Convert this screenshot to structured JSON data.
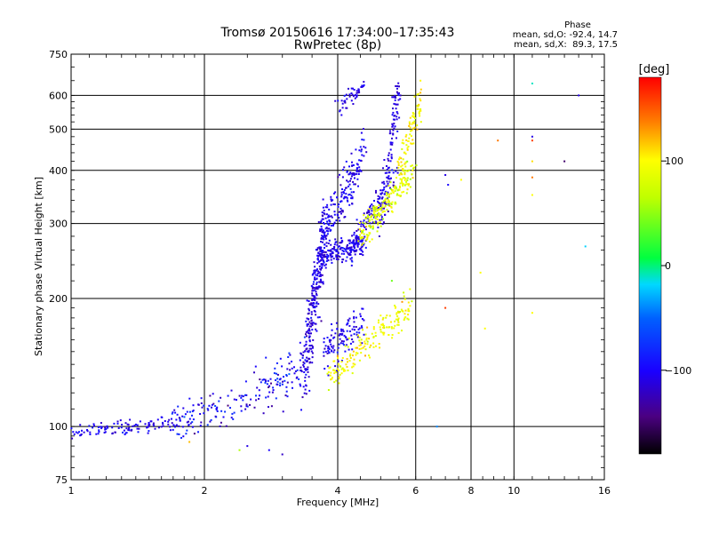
{
  "chart_data": {
    "type": "scatter",
    "title": "Tromsø 20150616 17:34:00–17:35:43",
    "subtitle": "RwPretec (8p)",
    "xlabel": "Frequency [MHz]",
    "ylabel": "Stationary phase Virtual Height [km]",
    "x_scale": "log",
    "y_scale": "log",
    "xlim": [
      1,
      16
    ],
    "ylim": [
      75,
      750
    ],
    "x_ticks": [
      1,
      2,
      4,
      6,
      8,
      10,
      16
    ],
    "x_tick_labels": [
      "1",
      "2",
      "4",
      "6",
      "8",
      "10",
      "16"
    ],
    "y_ticks": [
      75,
      100,
      200,
      300,
      400,
      500,
      600,
      750
    ],
    "y_tick_labels": [
      "75",
      "100",
      "200",
      "300",
      "400",
      "500",
      "600",
      "750"
    ],
    "grid": true,
    "phase_stats": {
      "title": "Phase",
      "o_line": "mean, sd,O: -92.4, 14.7",
      "x_line": "mean, sd,X:  89.3, 17.5"
    },
    "colorbar": {
      "label": "[deg]",
      "range": [
        -180,
        180
      ],
      "ticks": [
        100,
        0,
        -100
      ],
      "tick_labels": [
        "100",
        "0",
        "−100"
      ]
    },
    "series": [
      {
        "segments": [
          {
            "f0": 1.0,
            "f1": 1.7,
            "h0": 97,
            "h1": 102,
            "spread": 0.02,
            "n": 110,
            "phase": -105,
            "psd": 10
          },
          {
            "f0": 1.7,
            "f1": 2.6,
            "h0": 102,
            "h1": 118,
            "spread": 0.05,
            "n": 110,
            "phase": -100,
            "psd": 18
          },
          {
            "f0": 2.6,
            "f1": 3.4,
            "h0": 118,
            "h1": 140,
            "spread": 0.07,
            "n": 90,
            "phase": -100,
            "psd": 20
          },
          {
            "f0": 3.35,
            "f1": 3.75,
            "h0": 130,
            "h1": 300,
            "spread": 0.08,
            "n": 280,
            "phase": -110,
            "psd": 10
          },
          {
            "f0": 3.6,
            "f1": 4.6,
            "h0": 250,
            "h1": 270,
            "spread": 0.03,
            "n": 170,
            "phase": -105,
            "psd": 10
          },
          {
            "f0": 3.7,
            "f1": 4.6,
            "h0": 285,
            "h1": 440,
            "spread": 0.06,
            "n": 180,
            "phase": -105,
            "psd": 10
          },
          {
            "f0": 4.0,
            "f1": 4.6,
            "h0": 560,
            "h1": 640,
            "spread": 0.02,
            "n": 45,
            "phase": -110,
            "psd": 8
          },
          {
            "f0": 4.2,
            "f1": 5.4,
            "h0": 255,
            "h1": 390,
            "spread": 0.04,
            "n": 150,
            "phase": -105,
            "psd": 10
          },
          {
            "f0": 5.0,
            "f1": 5.5,
            "h0": 300,
            "h1": 640,
            "spread": 0.04,
            "n": 110,
            "phase": -110,
            "psd": 8
          },
          {
            "f0": 3.7,
            "f1": 4.6,
            "h0": 150,
            "h1": 175,
            "spread": 0.05,
            "n": 110,
            "phase": -105,
            "psd": 10
          }
        ]
      },
      {
        "segments": [
          {
            "f0": 4.5,
            "f1": 5.9,
            "h0": 280,
            "h1": 400,
            "spread": 0.04,
            "n": 200,
            "phase": 85,
            "psd": 18
          },
          {
            "f0": 5.5,
            "f1": 6.2,
            "h0": 400,
            "h1": 600,
            "spread": 0.04,
            "n": 90,
            "phase": 100,
            "psd": 10
          },
          {
            "f0": 3.8,
            "f1": 5.9,
            "h0": 130,
            "h1": 195,
            "spread": 0.04,
            "n": 180,
            "phase": 95,
            "psd": 12
          }
        ]
      }
    ],
    "stray_points": [
      [
        7.0,
        390,
        -110
      ],
      [
        7.1,
        370,
        -100
      ],
      [
        7.6,
        380,
        100
      ],
      [
        8.4,
        230,
        100
      ],
      [
        8.6,
        170,
        100
      ],
      [
        9.2,
        470,
        140
      ],
      [
        11.0,
        640,
        -10
      ],
      [
        11.0,
        480,
        -110
      ],
      [
        11.0,
        470,
        160
      ],
      [
        11.0,
        420,
        110
      ],
      [
        11.0,
        385,
        140
      ],
      [
        11.0,
        350,
        100
      ],
      [
        11.0,
        185,
        100
      ],
      [
        14.0,
        600,
        -110
      ],
      [
        14.5,
        265,
        -20
      ],
      [
        13.0,
        420,
        -150
      ],
      [
        6.7,
        100,
        -40
      ],
      [
        7.0,
        190,
        160
      ],
      [
        5.3,
        220,
        40
      ],
      [
        2.4,
        88,
        60
      ],
      [
        2.5,
        90,
        -110
      ],
      [
        2.8,
        88,
        -100
      ],
      [
        3.0,
        86,
        -120
      ],
      [
        1.85,
        92,
        120
      ]
    ]
  }
}
